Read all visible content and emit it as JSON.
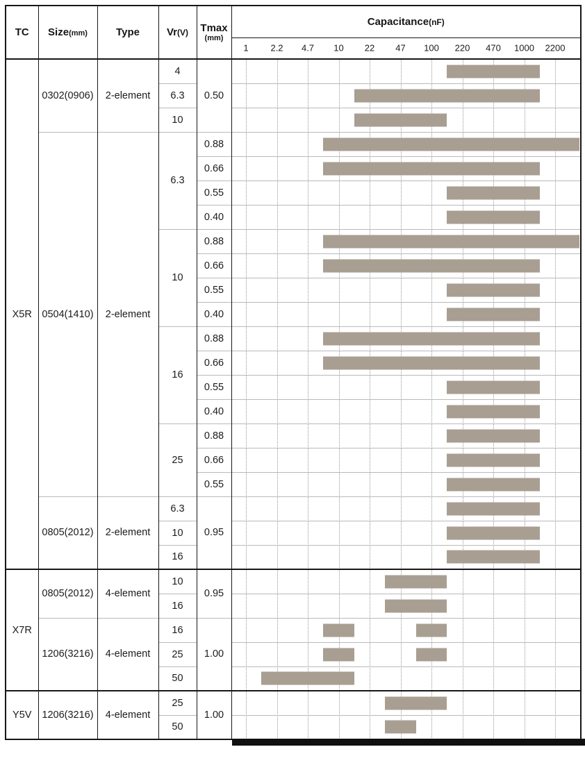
{
  "header": {
    "tc_label": "TC",
    "size_label": "Size",
    "size_unit": "(mm)",
    "type_label": "Type",
    "vr_label": "Vr",
    "vr_unit": "(V)",
    "tmax_label": "Tmax",
    "tmax_unit": "(mm)",
    "capacitance_label": "Capacitance",
    "capacitance_unit": "(nF)"
  },
  "colors": {
    "bar": "#a89e92",
    "grid_dotted": "#979797",
    "heavy_rule": "#161616",
    "light_rule": "#b9b9b9"
  },
  "chart_data": {
    "type": "range-bar",
    "x_axis_label": "Capacitance(nF)",
    "x_scale": "log-categorical",
    "x_ticks": [
      1,
      2.2,
      4.7,
      10,
      22,
      47,
      100,
      220,
      470,
      1000,
      2200
    ],
    "grid": "dotted-vertical",
    "columns": [
      "TC",
      "Size(mm)",
      "Type",
      "Vr(V)",
      "Tmax(mm)",
      "Capacitance(nF)"
    ],
    "rows": [
      {
        "tc": "X5R",
        "size": "0302(0906)",
        "type": "2-element",
        "vr": "4",
        "tmax": "0.50",
        "ranges": [
          [
            220,
            1000
          ]
        ]
      },
      {
        "tc": "X5R",
        "size": "0302(0906)",
        "type": "2-element",
        "vr": "6.3",
        "tmax": "0.50",
        "ranges": [
          [
            22,
            1000
          ]
        ]
      },
      {
        "tc": "X5R",
        "size": "0302(0906)",
        "type": "2-element",
        "vr": "10",
        "tmax": "0.50",
        "ranges": [
          [
            22,
            100
          ]
        ]
      },
      {
        "tc": "X5R",
        "size": "0504(1410)",
        "type": "2-element",
        "vr": "6.3",
        "tmax": "0.88",
        "ranges": [
          [
            10,
            2200
          ]
        ]
      },
      {
        "tc": "X5R",
        "size": "0504(1410)",
        "type": "2-element",
        "vr": "6.3",
        "tmax": "0.66",
        "ranges": [
          [
            10,
            1000
          ]
        ]
      },
      {
        "tc": "X5R",
        "size": "0504(1410)",
        "type": "2-element",
        "vr": "6.3",
        "tmax": "0.55",
        "ranges": [
          [
            220,
            1000
          ]
        ]
      },
      {
        "tc": "X5R",
        "size": "0504(1410)",
        "type": "2-element",
        "vr": "6.3",
        "tmax": "0.40",
        "ranges": [
          [
            220,
            1000
          ]
        ]
      },
      {
        "tc": "X5R",
        "size": "0504(1410)",
        "type": "2-element",
        "vr": "10",
        "tmax": "0.88",
        "ranges": [
          [
            10,
            2200
          ]
        ]
      },
      {
        "tc": "X5R",
        "size": "0504(1410)",
        "type": "2-element",
        "vr": "10",
        "tmax": "0.66",
        "ranges": [
          [
            10,
            1000
          ]
        ]
      },
      {
        "tc": "X5R",
        "size": "0504(1410)",
        "type": "2-element",
        "vr": "10",
        "tmax": "0.55",
        "ranges": [
          [
            220,
            1000
          ]
        ]
      },
      {
        "tc": "X5R",
        "size": "0504(1410)",
        "type": "2-element",
        "vr": "10",
        "tmax": "0.40",
        "ranges": [
          [
            220,
            1000
          ]
        ]
      },
      {
        "tc": "X5R",
        "size": "0504(1410)",
        "type": "2-element",
        "vr": "16",
        "tmax": "0.88",
        "ranges": [
          [
            10,
            1000
          ]
        ]
      },
      {
        "tc": "X5R",
        "size": "0504(1410)",
        "type": "2-element",
        "vr": "16",
        "tmax": "0.66",
        "ranges": [
          [
            10,
            1000
          ]
        ]
      },
      {
        "tc": "X5R",
        "size": "0504(1410)",
        "type": "2-element",
        "vr": "16",
        "tmax": "0.55",
        "ranges": [
          [
            220,
            1000
          ]
        ]
      },
      {
        "tc": "X5R",
        "size": "0504(1410)",
        "type": "2-element",
        "vr": "16",
        "tmax": "0.40",
        "ranges": [
          [
            220,
            1000
          ]
        ]
      },
      {
        "tc": "X5R",
        "size": "0504(1410)",
        "type": "2-element",
        "vr": "25",
        "tmax": "0.88",
        "ranges": [
          [
            220,
            1000
          ]
        ]
      },
      {
        "tc": "X5R",
        "size": "0504(1410)",
        "type": "2-element",
        "vr": "25",
        "tmax": "0.66",
        "ranges": [
          [
            220,
            1000
          ]
        ]
      },
      {
        "tc": "X5R",
        "size": "0504(1410)",
        "type": "2-element",
        "vr": "25",
        "tmax": "0.55",
        "ranges": [
          [
            220,
            1000
          ]
        ]
      },
      {
        "tc": "X5R",
        "size": "0805(2012)",
        "type": "2-element",
        "vr": "6.3",
        "tmax": "0.95",
        "ranges": [
          [
            220,
            1000
          ]
        ]
      },
      {
        "tc": "X5R",
        "size": "0805(2012)",
        "type": "2-element",
        "vr": "10",
        "tmax": "0.95",
        "ranges": [
          [
            220,
            1000
          ]
        ]
      },
      {
        "tc": "X5R",
        "size": "0805(2012)",
        "type": "2-element",
        "vr": "16",
        "tmax": "0.95",
        "ranges": [
          [
            220,
            1000
          ]
        ]
      },
      {
        "tc": "X7R",
        "size": "0805(2012)",
        "type": "4-element",
        "vr": "10",
        "tmax": "0.95",
        "ranges": [
          [
            47,
            100
          ]
        ]
      },
      {
        "tc": "X7R",
        "size": "0805(2012)",
        "type": "4-element",
        "vr": "16",
        "tmax": "0.95",
        "ranges": [
          [
            47,
            100
          ]
        ]
      },
      {
        "tc": "X7R",
        "size": "1206(3216)",
        "type": "4-element",
        "vr": "16",
        "tmax": "1.00",
        "ranges": [
          [
            10,
            10
          ],
          [
            100,
            100
          ]
        ]
      },
      {
        "tc": "X7R",
        "size": "1206(3216)",
        "type": "4-element",
        "vr": "25",
        "tmax": "1.00",
        "ranges": [
          [
            10,
            10
          ],
          [
            100,
            100
          ]
        ]
      },
      {
        "tc": "X7R",
        "size": "1206(3216)",
        "type": "4-element",
        "vr": "50",
        "tmax": "1.00",
        "ranges": [
          [
            2.2,
            10
          ]
        ]
      },
      {
        "tc": "Y5V",
        "size": "1206(3216)",
        "type": "4-element",
        "vr": "25",
        "tmax": "1.00",
        "ranges": [
          [
            47,
            100
          ]
        ]
      },
      {
        "tc": "Y5V",
        "size": "1206(3216)",
        "type": "4-element",
        "vr": "50",
        "tmax": "1.00",
        "ranges": [
          [
            47,
            47
          ]
        ]
      }
    ]
  }
}
